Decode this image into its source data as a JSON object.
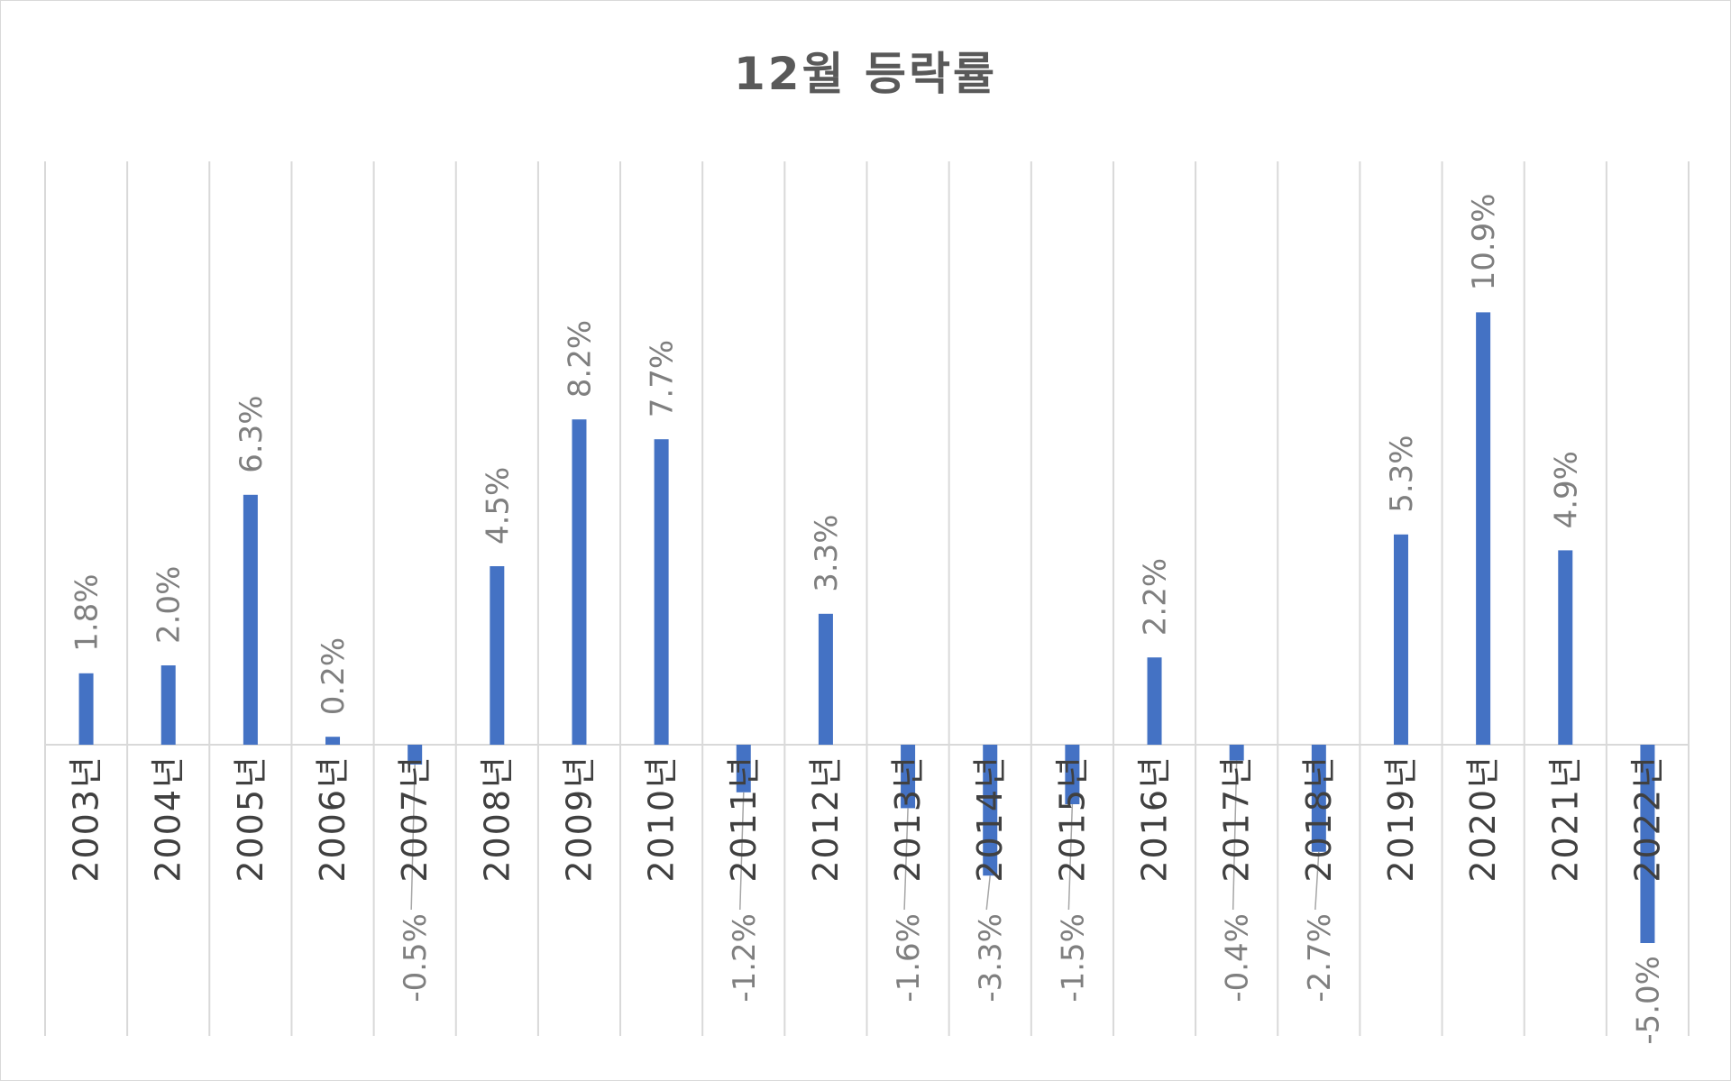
{
  "chart_data": {
    "type": "bar",
    "title": "12월 등락률",
    "categories": [
      "2003년",
      "2004년",
      "2005년",
      "2006년",
      "2007년",
      "2008년",
      "2009년",
      "2010년",
      "2011년",
      "2012년",
      "2013년",
      "2014년",
      "2015년",
      "2016년",
      "2017년",
      "2018년",
      "2019년",
      "2020년",
      "2021년",
      "2022년"
    ],
    "values": [
      1.8,
      2.0,
      6.3,
      0.2,
      -0.5,
      4.5,
      8.2,
      7.7,
      -1.2,
      3.3,
      -1.6,
      -3.3,
      -1.5,
      2.2,
      -0.4,
      -2.7,
      5.3,
      10.9,
      4.9,
      -5.0
    ],
    "data_labels": [
      "1.8%",
      "2.0%",
      "6.3%",
      "0.2%",
      "-0.5%",
      "4.5%",
      "8.2%",
      "7.7%",
      "-1.2%",
      "3.3%",
      "-1.6%",
      "-3.3%",
      "-1.5%",
      "2.2%",
      "-0.4%",
      "-2.7%",
      "5.3%",
      "10.9%",
      "4.9%",
      "-5.0%"
    ],
    "value_unit": "%",
    "ylim": [
      -6.0,
      12.0
    ],
    "grid": "vertical",
    "legend": "none",
    "bar_color": "#4472C4"
  }
}
